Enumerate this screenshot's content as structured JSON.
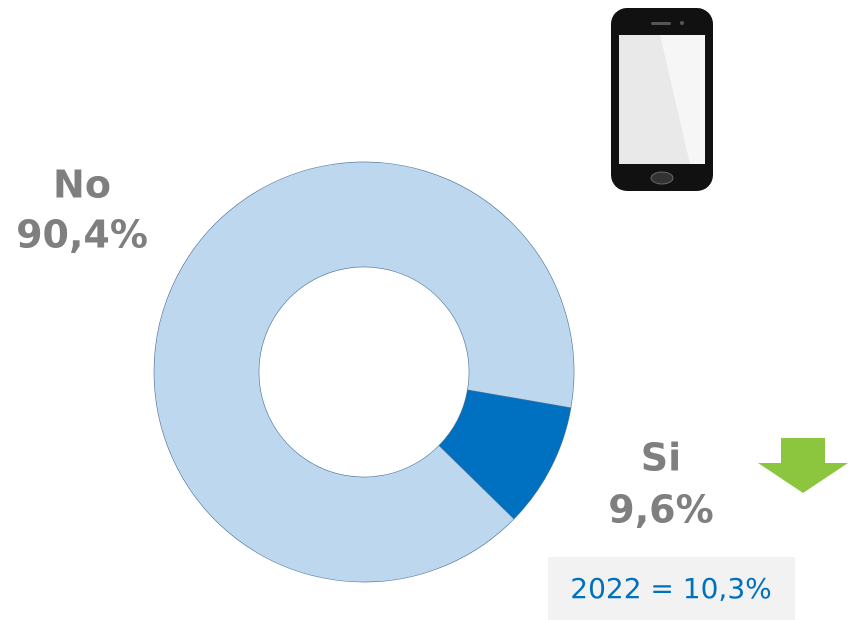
{
  "chart_data": {
    "type": "donut",
    "categories": [
      "No",
      "Si"
    ],
    "values": [
      90.4,
      9.6
    ],
    "value_labels": [
      "90,4%",
      "9,6%"
    ],
    "colors": [
      "#bdd7ee",
      "#0070c0"
    ],
    "annotation": "2022 = 10,3%"
  }
}
